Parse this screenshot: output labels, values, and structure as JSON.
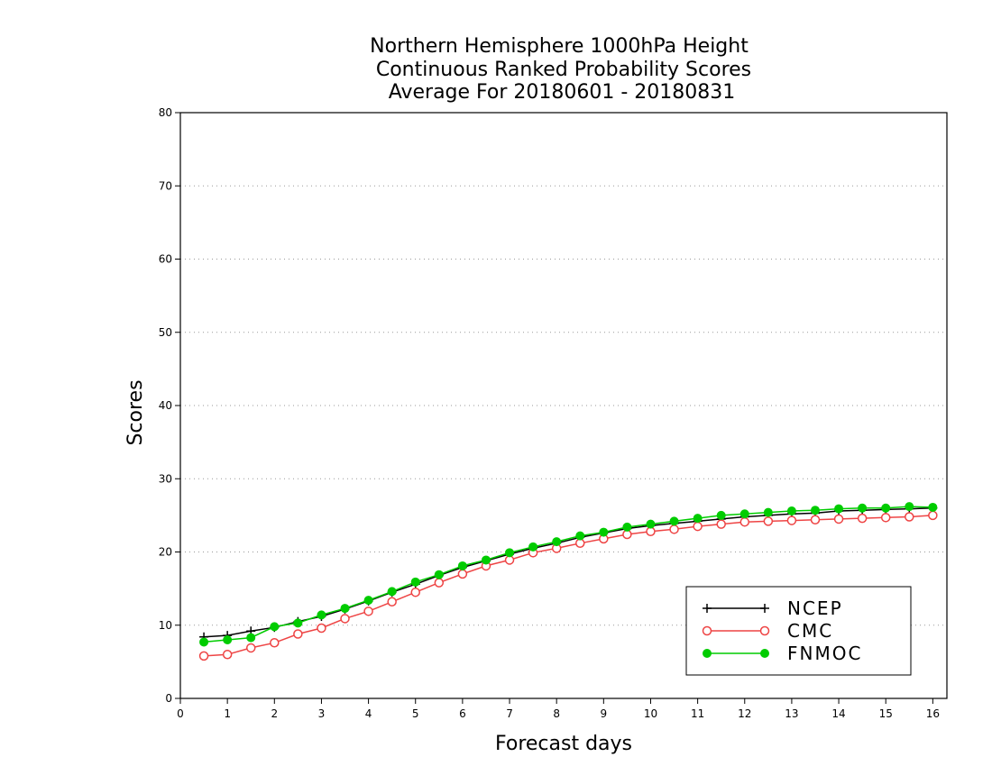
{
  "chart_data": {
    "type": "line",
    "title_lines": [
      "Northern Hemisphere 1000hPa Height",
      "Continuous Ranked Probability Scores",
      "Average For 20180601 - 20180831"
    ],
    "xlabel": "Forecast days",
    "ylabel": "Scores",
    "xlim": [
      0,
      16.3
    ],
    "ylim": [
      0,
      80
    ],
    "xticks": [
      0,
      1,
      2,
      3,
      4,
      5,
      6,
      7,
      8,
      9,
      10,
      11,
      12,
      13,
      14,
      15,
      16
    ],
    "yticks": [
      0,
      10,
      20,
      30,
      40,
      50,
      60,
      70,
      80
    ],
    "grid": "horizontal dotted",
    "legend_position": "bottom-right",
    "x": [
      0.5,
      1,
      1.5,
      2,
      2.5,
      3,
      3.5,
      4,
      4.5,
      5,
      5.5,
      6,
      6.5,
      7,
      7.5,
      8,
      8.5,
      9,
      9.5,
      10,
      10.5,
      11,
      11.5,
      12,
      12.5,
      13,
      13.5,
      14,
      14.5,
      15,
      15.5,
      16
    ],
    "series": [
      {
        "name": "NCEP",
        "color": "#000000",
        "marker": "plus",
        "values": [
          8.4,
          8.6,
          9.2,
          9.7,
          10.5,
          11.2,
          12.2,
          13.3,
          14.5,
          15.6,
          16.8,
          17.9,
          18.8,
          19.7,
          20.5,
          21.2,
          22.0,
          22.6,
          23.2,
          23.6,
          23.9,
          24.2,
          24.5,
          24.8,
          25.0,
          25.2,
          25.3,
          25.6,
          25.7,
          25.8,
          25.9,
          26.0
        ]
      },
      {
        "name": "CMC",
        "color": "#ee4444",
        "marker": "open-circle",
        "values": [
          5.8,
          6.0,
          6.9,
          7.6,
          8.8,
          9.6,
          10.9,
          11.9,
          13.2,
          14.5,
          15.8,
          17.0,
          18.1,
          18.9,
          19.9,
          20.5,
          21.2,
          21.8,
          22.4,
          22.8,
          23.1,
          23.5,
          23.8,
          24.1,
          24.2,
          24.3,
          24.4,
          24.5,
          24.6,
          24.7,
          24.8,
          25.0
        ]
      },
      {
        "name": "FNMOC",
        "color": "#00cc00",
        "marker": "filled-circle",
        "values": [
          7.7,
          8.0,
          8.3,
          9.8,
          10.3,
          11.4,
          12.3,
          13.4,
          14.6,
          15.9,
          16.9,
          18.1,
          18.9,
          19.9,
          20.7,
          21.4,
          22.2,
          22.7,
          23.4,
          23.8,
          24.2,
          24.6,
          25.0,
          25.2,
          25.4,
          25.6,
          25.7,
          25.9,
          26.0,
          26.0,
          26.2,
          26.1
        ]
      }
    ]
  }
}
